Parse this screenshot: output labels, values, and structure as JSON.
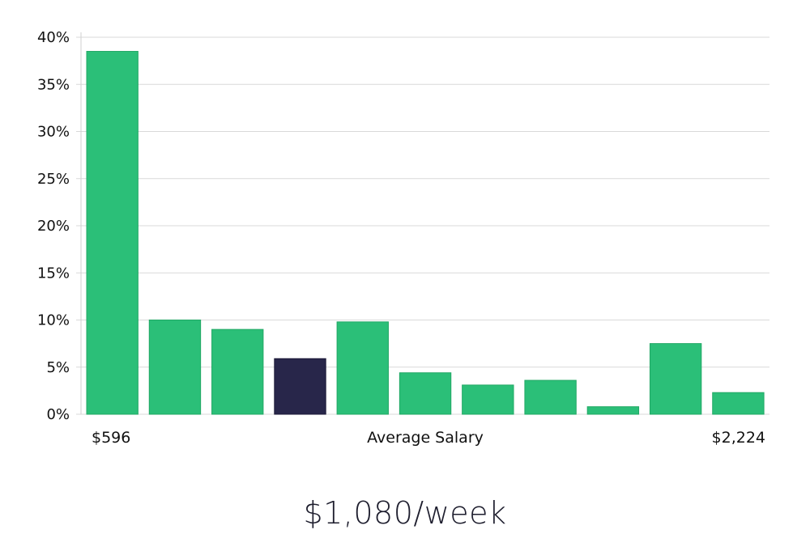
{
  "chart_data": {
    "type": "bar",
    "xlabel": "Average Salary",
    "x_start_label": "$596",
    "x_end_label": "$2,224",
    "ylim": [
      0,
      40
    ],
    "yticks": [
      "0%",
      "5%",
      "10%",
      "15%",
      "20%",
      "25%",
      "30%",
      "35%",
      "40%"
    ],
    "values": [
      38.5,
      10.0,
      9.0,
      5.9,
      9.8,
      4.4,
      3.1,
      3.6,
      0.8,
      7.5,
      2.3
    ],
    "highlight_index": 3,
    "grid": true
  },
  "colors": {
    "bar": "#2bbf78",
    "highlight": "#28264a"
  },
  "summary": {
    "salary_text": "$1,080/week"
  }
}
